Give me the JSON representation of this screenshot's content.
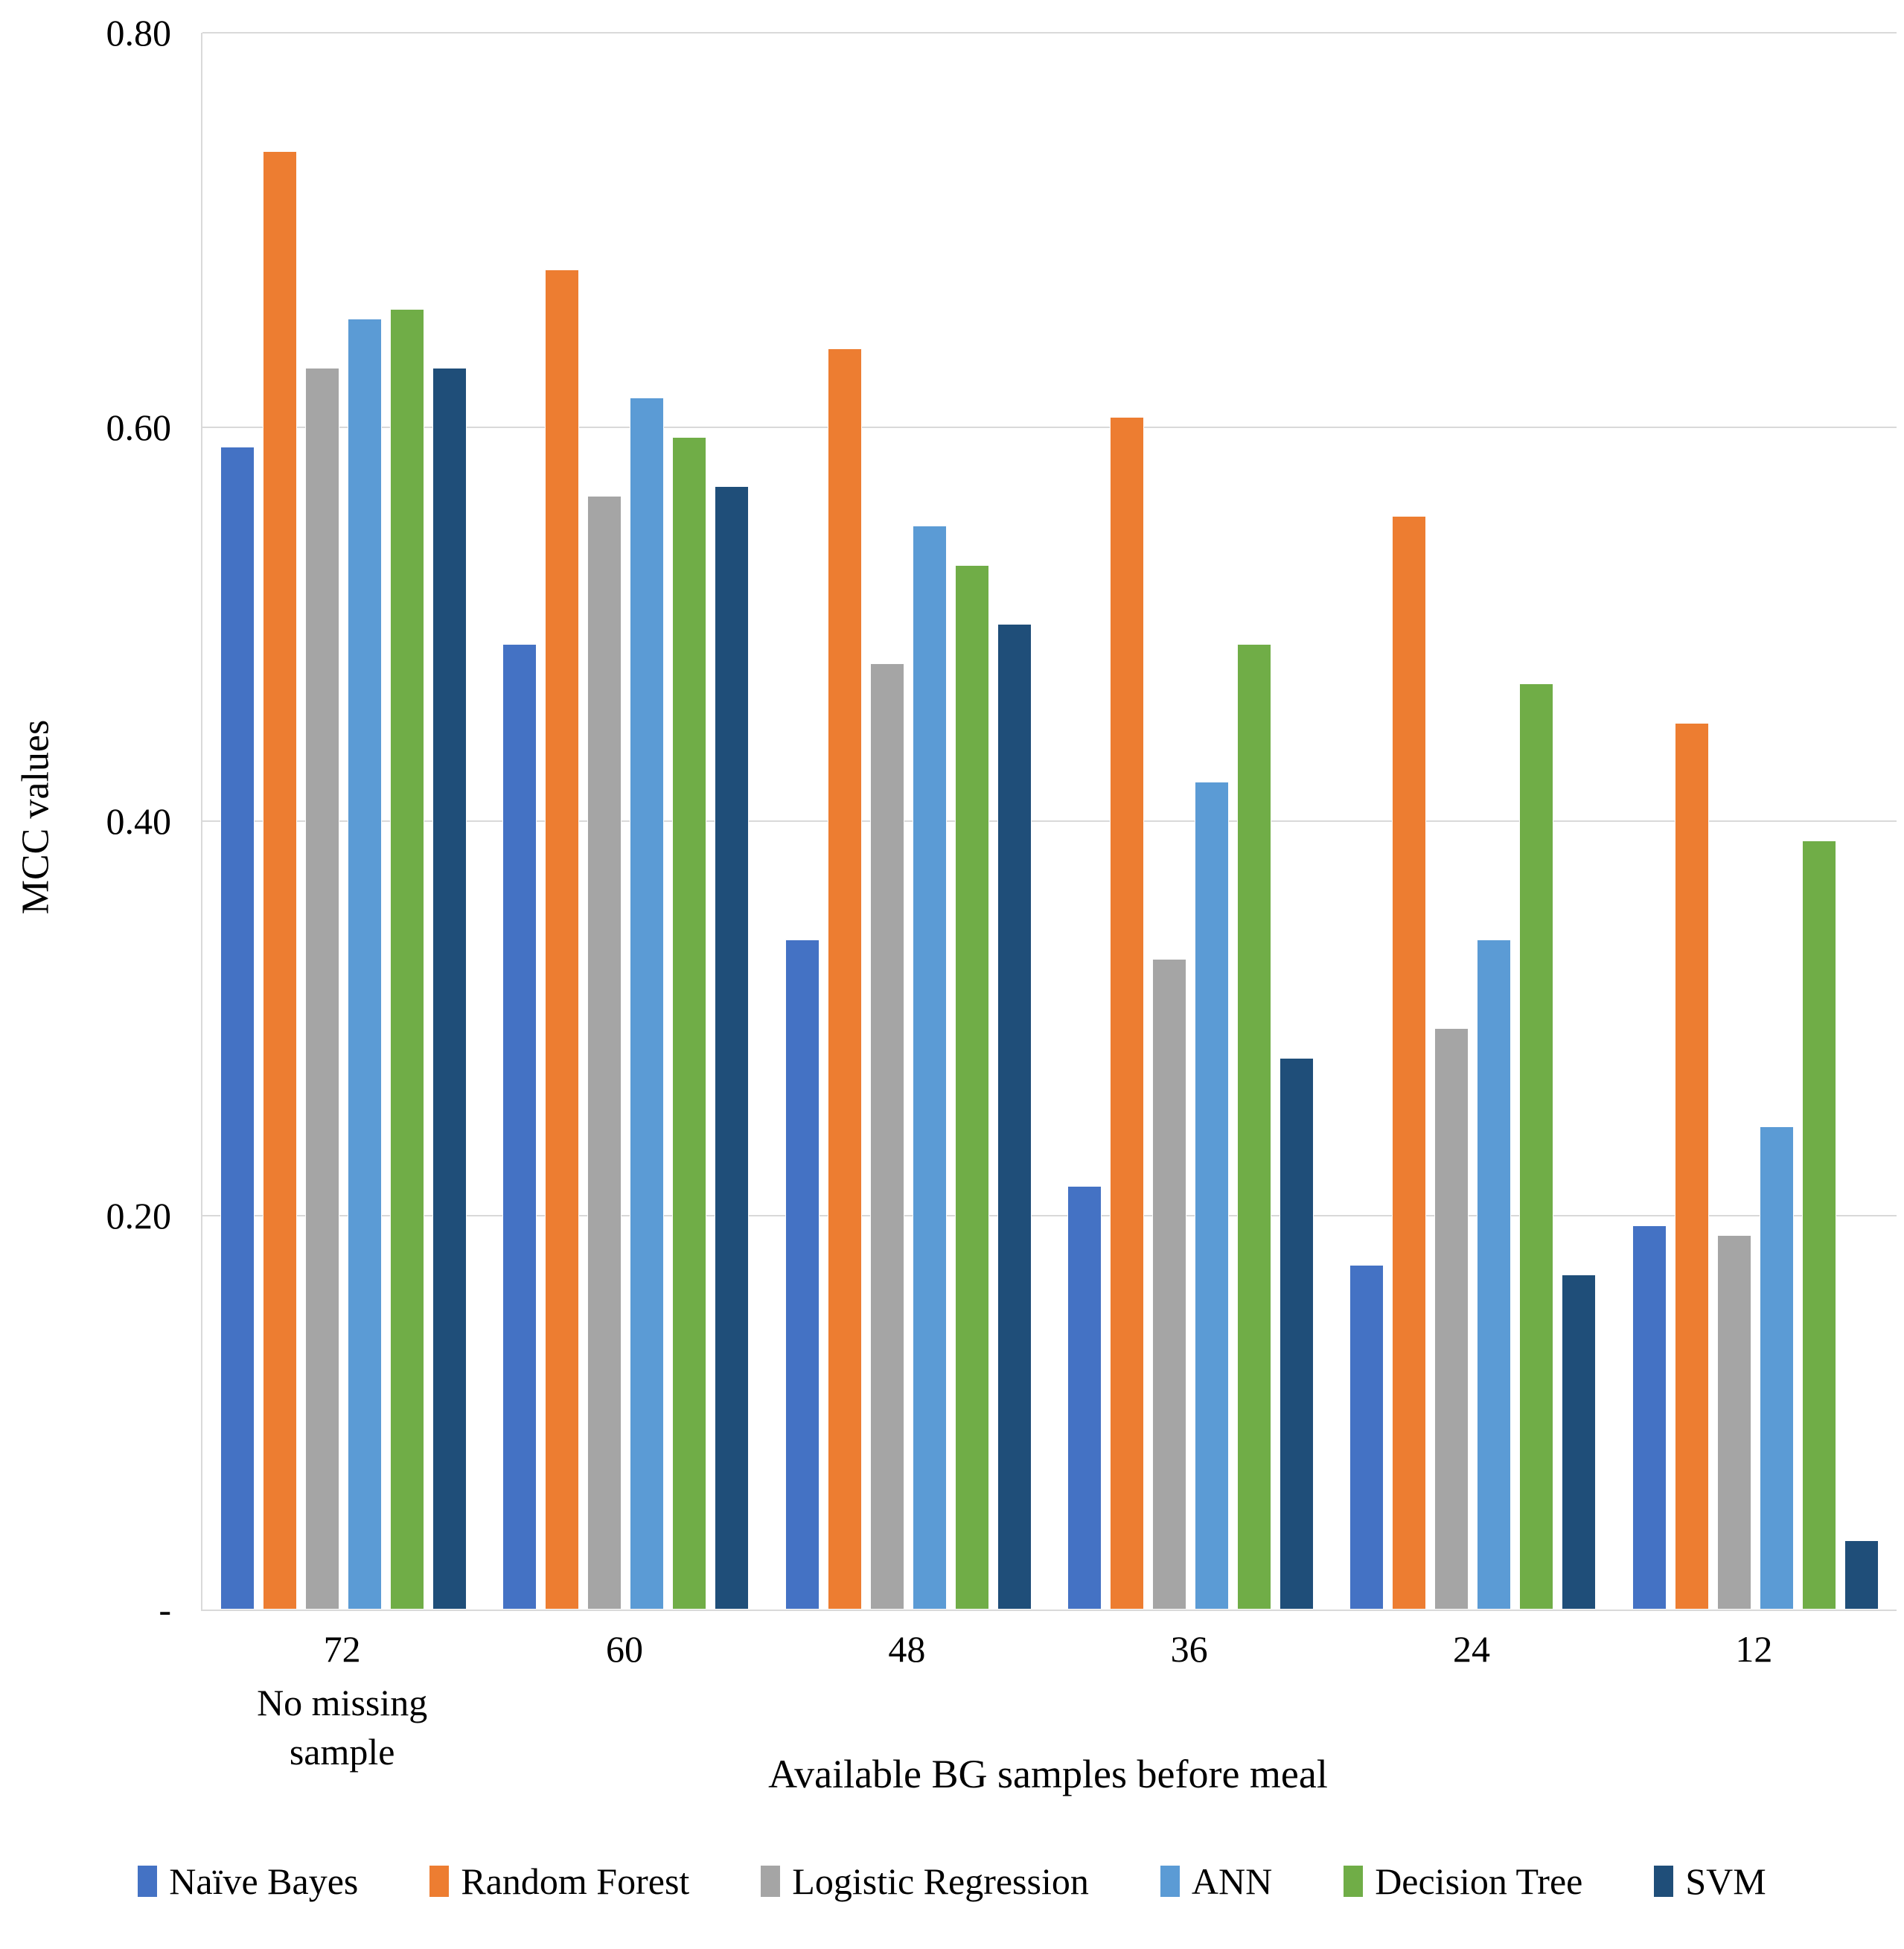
{
  "chart_data": {
    "type": "bar",
    "title": "",
    "xlabel": "Available BG samples before meal",
    "ylabel": "MCC values",
    "ylim": [
      0,
      0.8
    ],
    "grid": true,
    "legend_position": "bottom",
    "y_ticks": [
      {
        "value": 0.8,
        "label": "0.80"
      },
      {
        "value": 0.6,
        "label": "0.60"
      },
      {
        "value": 0.4,
        "label": "0.40"
      },
      {
        "value": 0.2,
        "label": "0.20"
      },
      {
        "value": 0.0,
        "label": "-"
      }
    ],
    "categories": [
      "72",
      "60",
      "48",
      "36",
      "24",
      "12"
    ],
    "category_sublabels": [
      "No missing\nsample",
      "",
      "",
      "",
      "",
      ""
    ],
    "series": [
      {
        "name": "Naïve Bayes",
        "color": "#4472C4",
        "values": [
          0.59,
          0.49,
          0.34,
          0.215,
          0.175,
          0.195
        ]
      },
      {
        "name": "Random Forest",
        "color": "#ED7D31",
        "values": [
          0.74,
          0.68,
          0.64,
          0.605,
          0.555,
          0.45
        ]
      },
      {
        "name": "Logistic Regression",
        "color": "#A5A5A5",
        "values": [
          0.63,
          0.565,
          0.48,
          0.33,
          0.295,
          0.19
        ]
      },
      {
        "name": "ANN",
        "color": "#5B9BD5",
        "values": [
          0.655,
          0.615,
          0.55,
          0.42,
          0.34,
          0.245
        ]
      },
      {
        "name": "Decision Tree",
        "color": "#70AD47",
        "values": [
          0.66,
          0.595,
          0.53,
          0.49,
          0.47,
          0.39
        ]
      },
      {
        "name": "SVM",
        "color": "#1F4E79",
        "values": [
          0.63,
          0.57,
          0.5,
          0.28,
          0.17,
          0.035
        ]
      }
    ]
  },
  "ui": {
    "gridline_color": "#d9d9d9",
    "background_color": "#ffffff"
  }
}
